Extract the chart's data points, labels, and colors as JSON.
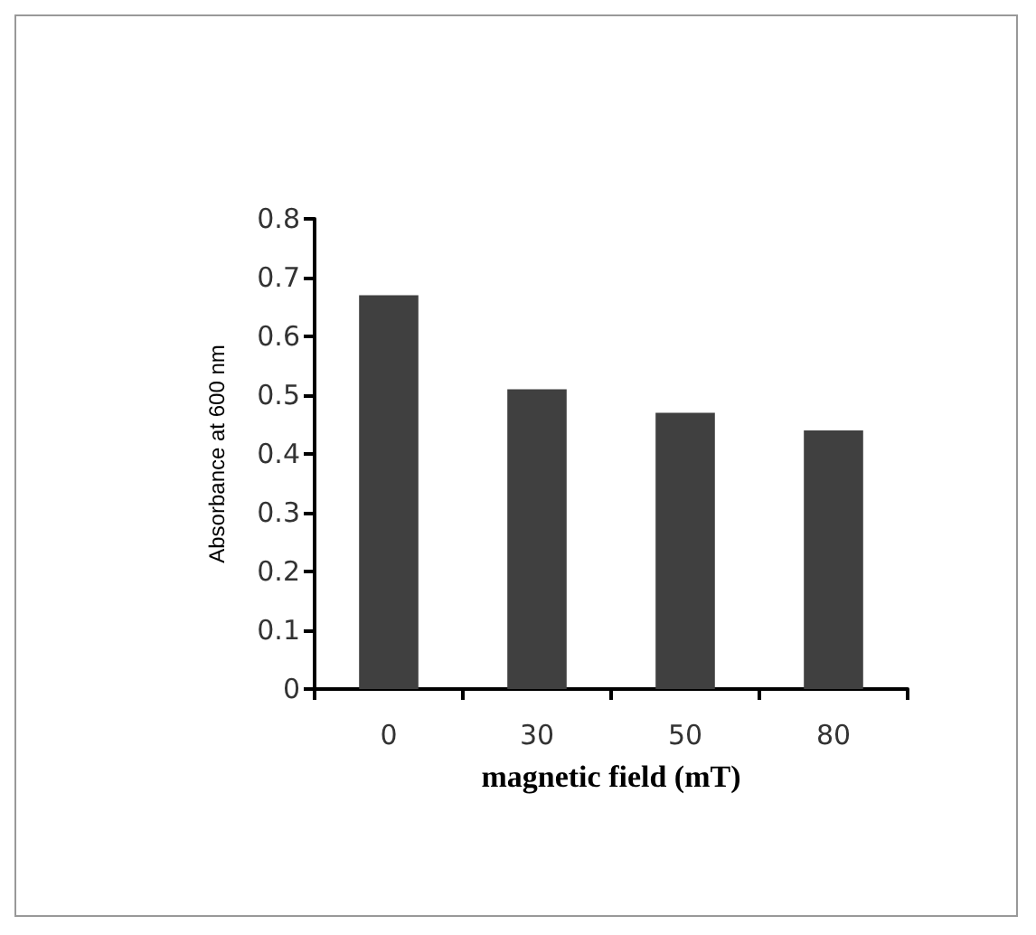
{
  "chart_data": {
    "type": "bar",
    "xlabel": "magnetic field (mT)",
    "ylabel": "Absorbance at 600 nm",
    "categories": [
      "0",
      "30",
      "50",
      "80"
    ],
    "values": [
      0.67,
      0.51,
      0.47,
      0.44
    ],
    "color": "#404040",
    "ylim": [
      0,
      0.8
    ],
    "yticks": [
      0,
      0.1,
      0.2,
      0.3,
      0.4,
      0.5,
      0.6,
      0.7,
      0.8
    ],
    "grid": false
  }
}
